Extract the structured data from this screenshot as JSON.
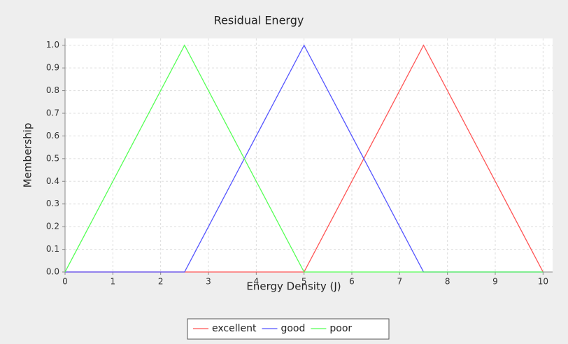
{
  "chart_data": {
    "type": "line",
    "title": "Residual Energy",
    "x_label": "Energy Density (J)",
    "y_label": "Membership",
    "xlim": [
      0,
      10.2
    ],
    "ylim": [
      0,
      1.03
    ],
    "xticks": [
      0,
      1,
      2,
      3,
      4,
      5,
      6,
      7,
      8,
      9,
      10
    ],
    "yticks": [
      {
        "value": 0,
        "label": "0.0"
      },
      0.1,
      0.2,
      0.3,
      0.4,
      0.5,
      0.6,
      0.7,
      0.8,
      0.9,
      {
        "value": 1,
        "label": "1.0"
      }
    ],
    "grid": true,
    "legend": "bottom",
    "series": [
      {
        "name": "excellent",
        "color": "#ff5555",
        "x": [
          0,
          5,
          7.5,
          10
        ],
        "values": [
          0,
          0,
          1,
          0
        ]
      },
      {
        "name": "good",
        "color": "#5555ff",
        "x": [
          0,
          2.5,
          5,
          7.5,
          10
        ],
        "values": [
          0,
          0,
          1,
          0,
          0
        ]
      },
      {
        "name": "poor",
        "color": "#55ff55",
        "x": [
          0,
          2.5,
          5,
          10
        ],
        "values": [
          0,
          1,
          0,
          0
        ]
      }
    ]
  }
}
